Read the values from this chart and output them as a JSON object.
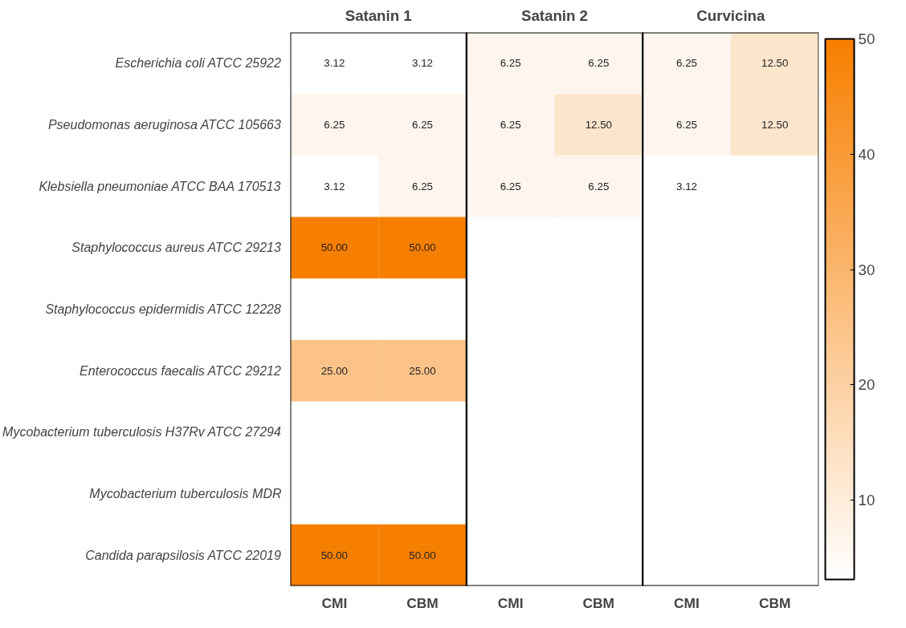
{
  "chart_data": {
    "type": "heatmap",
    "categories": [
      "CMI",
      "CBM",
      "CMI",
      "CBM",
      "CMI",
      "CBM"
    ],
    "y_categories": [
      "Escherichia coli ATCC 25922",
      "Pseudomonas aeruginosa ATCC 105663",
      "Klebsiella pneumoniae ATCC BAA 170513",
      "Staphylococcus aureus ATCC 29213",
      "Staphylococcus epidermidis ATCC 12228",
      "Enterococcus faecalis ATCC 29212",
      "Mycobacterium tuberculosis H37Rv ATCC 27294",
      "Mycobacterium tuberculosis MDR",
      "Candida parapsilosis ATCC 22019"
    ],
    "cells": [
      [
        3.12,
        3.12,
        6.25,
        6.25,
        6.25,
        12.5
      ],
      [
        6.25,
        6.25,
        6.25,
        12.5,
        6.25,
        12.5
      ],
      [
        3.12,
        6.25,
        6.25,
        6.25,
        3.12,
        null
      ],
      [
        50,
        50,
        null,
        null,
        null,
        null
      ],
      [
        null,
        null,
        null,
        null,
        null,
        null
      ],
      [
        25,
        25,
        null,
        null,
        null,
        null
      ],
      [
        null,
        null,
        null,
        null,
        null,
        null
      ],
      [
        null,
        null,
        null,
        null,
        null,
        null
      ],
      [
        50,
        50,
        null,
        null,
        null,
        null
      ]
    ],
    "cell_labels": [
      [
        "3.12",
        "3.12",
        "6.25",
        "6.25",
        "6.25",
        "12.50"
      ],
      [
        "6.25",
        "6.25",
        "6.25",
        "12.50",
        "6.25",
        "12.50"
      ],
      [
        "3.12",
        "6.25",
        "6.25",
        "6.25",
        "3.12",
        null
      ],
      [
        "50.00",
        "50.00",
        null,
        null,
        null,
        null
      ],
      [
        null,
        null,
        null,
        null,
        null,
        null
      ],
      [
        "25.00",
        "25.00",
        null,
        null,
        null,
        null
      ],
      [
        null,
        null,
        null,
        null,
        null,
        null
      ],
      [
        null,
        null,
        null,
        null,
        null,
        null
      ],
      [
        "50.00",
        "50.00",
        null,
        null,
        null,
        null
      ]
    ],
    "annotations": [
      "Satanin 1",
      "Satanin 2",
      "Curvicina"
    ],
    "colors": [
      "#ffffff",
      "#f77f00"
    ],
    "clim": [
      3.12,
      50
    ],
    "cticks": [
      10,
      20,
      30,
      40,
      50
    ]
  }
}
